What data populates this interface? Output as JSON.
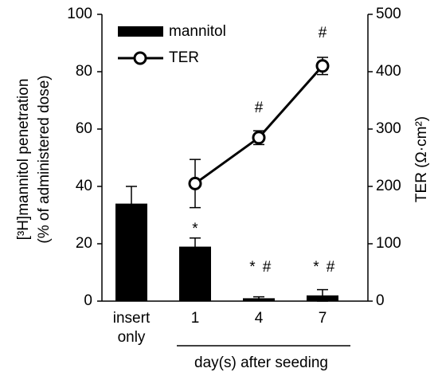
{
  "chart_data": {
    "type": "bar",
    "categories": [
      "insert only",
      "1",
      "4",
      "7"
    ],
    "series": [
      {
        "name": "mannitol",
        "type": "bar",
        "color": "#000000",
        "values": [
          34,
          19,
          1,
          2
        ],
        "errors": [
          6,
          3,
          0.5,
          2
        ]
      },
      {
        "name": "TER",
        "type": "line",
        "axis": "y2",
        "color": "#000000",
        "values": [
          null,
          205,
          285,
          410
        ],
        "errors": [
          null,
          42,
          12,
          15
        ]
      }
    ],
    "ylabel": [
      "[³H]mannitol penetration",
      "(% of administered dose)"
    ],
    "y2label": "TER (Ω·cm²)",
    "xlabel": "day(s) after seeding",
    "annotations": [
      "*",
      "*",
      "#",
      "*",
      "#",
      "#",
      "#"
    ],
    "ylim": [
      0,
      100
    ],
    "yticks": [
      0,
      20,
      40,
      60,
      80,
      100
    ],
    "y2lim": [
      0,
      500
    ],
    "y2ticks": [
      0,
      100,
      200,
      300,
      400,
      500
    ],
    "legend": "upper left"
  }
}
